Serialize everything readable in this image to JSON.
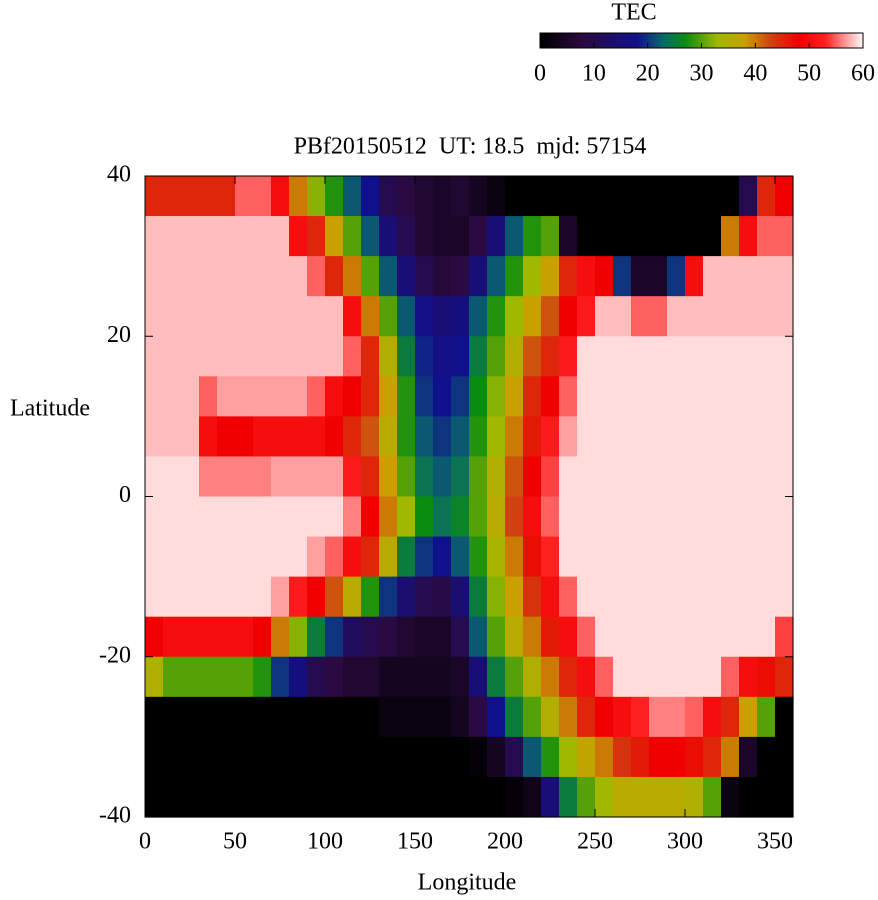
{
  "chart_data": {
    "type": "heatmap",
    "title": "PBf20150512  UT: 18.5  mjd: 57154",
    "xlabel": "Longitude",
    "ylabel": "Latitude",
    "colorbar_label": "TEC",
    "xlim": [
      0,
      360
    ],
    "ylim": [
      -40,
      40
    ],
    "xticks": [
      0,
      50,
      100,
      150,
      200,
      250,
      300,
      350
    ],
    "yticks": [
      -40,
      -20,
      0,
      20,
      40
    ],
    "clim": [
      0,
      60
    ],
    "cticks": [
      0,
      10,
      20,
      30,
      40,
      50,
      60
    ],
    "colorscale": [
      [
        0,
        "#000000"
      ],
      [
        8,
        "#2a0a40"
      ],
      [
        18,
        "#10108c"
      ],
      [
        23,
        "#0a6a6a"
      ],
      [
        27,
        "#0a8c10"
      ],
      [
        33,
        "#a0b800"
      ],
      [
        38,
        "#c8a000"
      ],
      [
        43,
        "#d04010"
      ],
      [
        48,
        "#f00000"
      ],
      [
        53,
        "#ff2020"
      ],
      [
        57,
        "#ffa0a0"
      ],
      [
        60,
        "#fff8f8"
      ]
    ],
    "z": [
      [
        45,
        45,
        45,
        45,
        45,
        55,
        55,
        50,
        40,
        32,
        28,
        22,
        18,
        10,
        8,
        6,
        5,
        6,
        4,
        2,
        0,
        0,
        0,
        0,
        0,
        0,
        0,
        0,
        0,
        0,
        0,
        0,
        0,
        10,
        45,
        48
      ],
      [
        58,
        58,
        58,
        58,
        58,
        58,
        58,
        58,
        50,
        45,
        38,
        30,
        22,
        15,
        10,
        6,
        5,
        5,
        8,
        15,
        22,
        28,
        30,
        5,
        0,
        0,
        0,
        0,
        0,
        0,
        0,
        0,
        40,
        50,
        55,
        55
      ],
      [
        58,
        58,
        58,
        58,
        58,
        58,
        58,
        58,
        58,
        55,
        45,
        40,
        30,
        22,
        15,
        10,
        7,
        8,
        15,
        22,
        28,
        33,
        38,
        45,
        50,
        48,
        20,
        5,
        5,
        20,
        50,
        58,
        58,
        58,
        58,
        58
      ],
      [
        58,
        58,
        58,
        58,
        58,
        58,
        58,
        58,
        58,
        58,
        58,
        50,
        40,
        30,
        22,
        17,
        15,
        16,
        22,
        28,
        33,
        38,
        42,
        48,
        52,
        58,
        58,
        55,
        55,
        58,
        58,
        58,
        58,
        58,
        58,
        58
      ],
      [
        58,
        58,
        58,
        58,
        58,
        58,
        58,
        58,
        58,
        58,
        58,
        55,
        45,
        35,
        25,
        19,
        17,
        18,
        25,
        30,
        35,
        42,
        45,
        52,
        59,
        59,
        59,
        59,
        59,
        59,
        59,
        59,
        59,
        59,
        59,
        59
      ],
      [
        58,
        58,
        58,
        55,
        57,
        57,
        57,
        57,
        57,
        55,
        50,
        48,
        45,
        38,
        28,
        20,
        18,
        20,
        27,
        32,
        38,
        45,
        48,
        55,
        59,
        59,
        59,
        59,
        59,
        59,
        59,
        59,
        59,
        59,
        59,
        59
      ],
      [
        58,
        58,
        58,
        50,
        48,
        48,
        50,
        50,
        50,
        50,
        48,
        45,
        42,
        36,
        28,
        22,
        20,
        22,
        28,
        33,
        40,
        46,
        52,
        57,
        59,
        59,
        59,
        59,
        59,
        59,
        59,
        59,
        59,
        59,
        59,
        59
      ],
      [
        59,
        59,
        59,
        56,
        56,
        56,
        56,
        57,
        57,
        57,
        57,
        52,
        45,
        38,
        30,
        24,
        22,
        24,
        30,
        35,
        42,
        48,
        54,
        59,
        59,
        59,
        59,
        59,
        59,
        59,
        59,
        59,
        59,
        59,
        59,
        59
      ],
      [
        59,
        59,
        59,
        59,
        59,
        59,
        59,
        59,
        59,
        59,
        59,
        56,
        48,
        40,
        33,
        27,
        24,
        26,
        30,
        36,
        43,
        50,
        55,
        59,
        59,
        59,
        59,
        59,
        59,
        59,
        59,
        59,
        59,
        59,
        59,
        59
      ],
      [
        59,
        59,
        59,
        59,
        59,
        59,
        59,
        59,
        59,
        57,
        55,
        50,
        45,
        36,
        25,
        20,
        18,
        22,
        28,
        34,
        40,
        47,
        53,
        59,
        59,
        59,
        59,
        59,
        59,
        59,
        59,
        59,
        59,
        59,
        59,
        59
      ],
      [
        59,
        59,
        59,
        59,
        59,
        59,
        59,
        57,
        52,
        48,
        42,
        36,
        28,
        20,
        14,
        10,
        9,
        14,
        25,
        32,
        38,
        44,
        50,
        55,
        59,
        59,
        59,
        59,
        59,
        59,
        59,
        59,
        59,
        59,
        59,
        59
      ],
      [
        48,
        50,
        50,
        50,
        50,
        50,
        48,
        40,
        32,
        25,
        20,
        12,
        10,
        8,
        6,
        5,
        5,
        10,
        22,
        30,
        36,
        40,
        46,
        50,
        55,
        59,
        59,
        59,
        59,
        59,
        59,
        59,
        59,
        59,
        59,
        54
      ],
      [
        35,
        30,
        30,
        30,
        30,
        30,
        28,
        20,
        16,
        10,
        8,
        6,
        6,
        4,
        4,
        4,
        4,
        5,
        15,
        25,
        30,
        35,
        40,
        45,
        50,
        55,
        59,
        59,
        59,
        59,
        59,
        59,
        55,
        50,
        47,
        45
      ],
      [
        0,
        0,
        0,
        0,
        0,
        0,
        0,
        0,
        0,
        0,
        0,
        0,
        0,
        2,
        2,
        2,
        2,
        4,
        8,
        18,
        25,
        30,
        35,
        40,
        45,
        48,
        50,
        53,
        56,
        56,
        55,
        50,
        45,
        38,
        30,
        0
      ],
      [
        0,
        0,
        0,
        0,
        0,
        0,
        0,
        0,
        0,
        0,
        0,
        0,
        0,
        0,
        0,
        0,
        0,
        0,
        1,
        4,
        10,
        22,
        28,
        33,
        37,
        40,
        44,
        46,
        48,
        48,
        47,
        45,
        40,
        5,
        0,
        0
      ],
      [
        0,
        0,
        0,
        0,
        0,
        0,
        0,
        0,
        0,
        0,
        0,
        0,
        0,
        0,
        0,
        0,
        0,
        0,
        0,
        0,
        1,
        3,
        15,
        25,
        30,
        33,
        36,
        36,
        36,
        36,
        35,
        30,
        2,
        0,
        0,
        0
      ]
    ]
  }
}
